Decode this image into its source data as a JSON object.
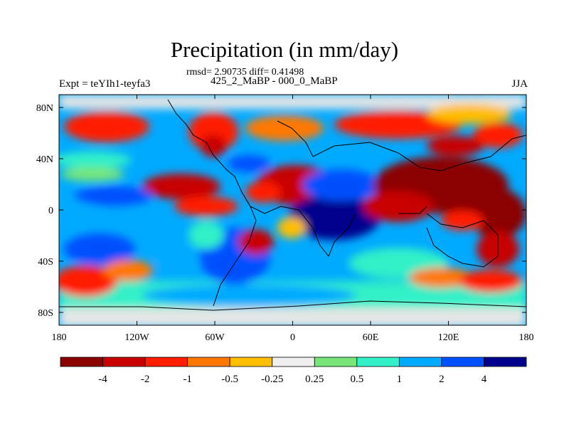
{
  "title": "Precipitation (in mm/day)",
  "stats_line": "rmsd= 2.90735 diff= 0.41498",
  "period_line": "425_2_MaBP - 000_0_MaBP",
  "experiment_label": "Expt = teYIh1-teyfa3",
  "season_label": "JJA",
  "map": {
    "projection": "cylindrical-equidistant",
    "lon_range": [
      -180,
      180
    ],
    "lat_range": [
      -90,
      90
    ],
    "x_ticks": [
      {
        "lon": -180,
        "label": "180"
      },
      {
        "lon": -120,
        "label": "120W"
      },
      {
        "lon": -60,
        "label": "60W"
      },
      {
        "lon": 0,
        "label": "0"
      },
      {
        "lon": 60,
        "label": "60E"
      },
      {
        "lon": 120,
        "label": "120E"
      },
      {
        "lon": 180,
        "label": "180"
      }
    ],
    "y_ticks": [
      {
        "lat": 80,
        "label": "80N"
      },
      {
        "lat": 40,
        "label": "40N"
      },
      {
        "lat": 0,
        "label": "0"
      },
      {
        "lat": -40,
        "label": "40S"
      },
      {
        "lat": -80,
        "label": "80S"
      }
    ],
    "missing_color": "#e6e6e6"
  },
  "colorbar": {
    "colors": [
      "#8b0000",
      "#c80000",
      "#ff1e00",
      "#ff7800",
      "#ffbe00",
      "#f0f0f0",
      "#78e678",
      "#32f0c8",
      "#00aaff",
      "#0050ff",
      "#00008c"
    ],
    "labels": [
      "-4",
      "-2",
      "-1",
      "-0.5",
      "-0.25",
      "0.25",
      "0.5",
      "1",
      "2",
      "4"
    ]
  }
}
